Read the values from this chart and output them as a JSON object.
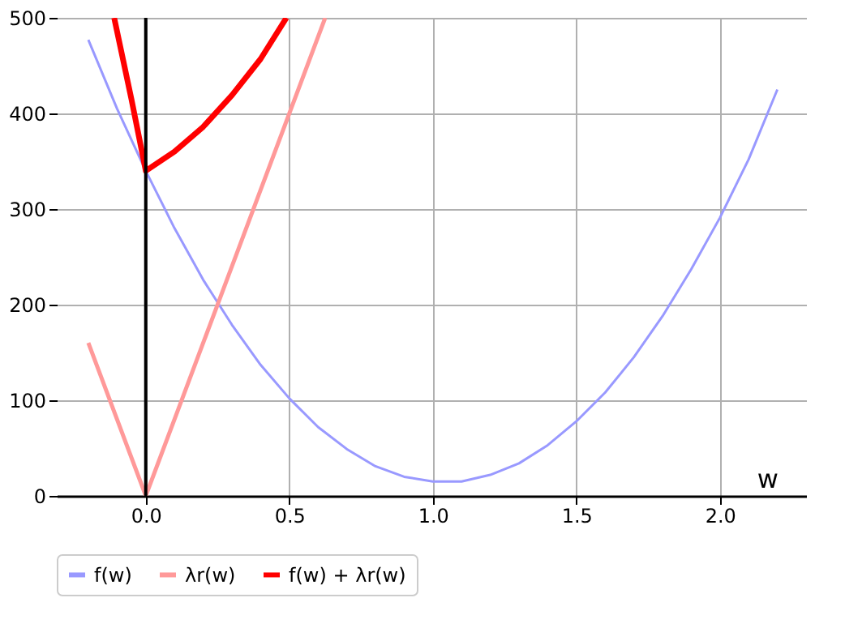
{
  "chart_data": {
    "type": "line",
    "xlabel": "w",
    "series": [
      {
        "name": "f(w)",
        "color": "#9999ff",
        "x": [
          -0.2,
          -0.1,
          0,
          0.1,
          0.2,
          0.3,
          0.4,
          0.5,
          0.6,
          0.7,
          0.8,
          0.9,
          1.0,
          1.1,
          1.2,
          1.3,
          1.4,
          1.5,
          1.6,
          1.7,
          1.8,
          1.9,
          2.0,
          2.1,
          2.2
        ],
        "values": [
          477,
          405,
          340,
          280,
          226,
          179,
          137,
          102,
          72,
          49,
          31,
          20,
          15,
          15,
          22,
          34,
          53,
          78,
          108,
          145,
          188,
          237,
          291,
          352,
          425
        ]
      },
      {
        "name": "λr(w)",
        "color": "#ff9999",
        "x": [
          -0.2,
          0,
          0.625
        ],
        "values": [
          160,
          0,
          500
        ]
      },
      {
        "name": "f(w) + λr(w)",
        "color": "#ff0000",
        "x": [
          -0.11,
          -0.05,
          0,
          0.1,
          0.2,
          0.3,
          0.4,
          0.49
        ],
        "values": [
          500,
          415,
          340,
          360,
          386,
          419,
          457,
          500
        ]
      }
    ],
    "xlim": [
      -0.31,
      2.3
    ],
    "ylim": [
      0,
      500
    ],
    "xticks": [
      {
        "value": 0,
        "label": "0.0"
      },
      {
        "value": 0.5,
        "label": "0.5"
      },
      {
        "value": 1,
        "label": "1.0"
      },
      {
        "value": 1.5,
        "label": "1.5"
      },
      {
        "value": 2,
        "label": "2.0"
      }
    ],
    "yticks": [
      0,
      100,
      200,
      300,
      400,
      500
    ],
    "ref_lines": [
      {
        "axis": "x",
        "value": 0,
        "color": "#000000"
      }
    ],
    "grid": true,
    "legend": "bottom",
    "marker": "none",
    "line_style": "solid"
  }
}
